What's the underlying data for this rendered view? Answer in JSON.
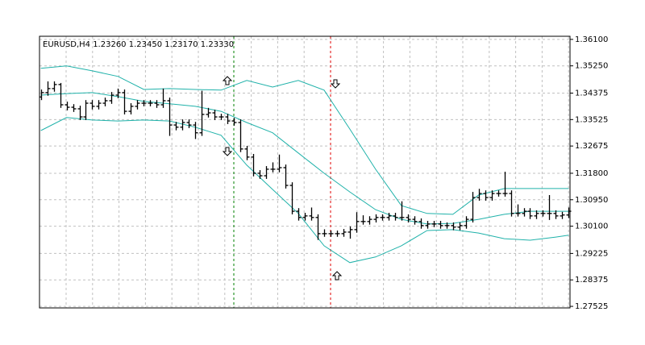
{
  "chart_data": {
    "type": "ohlc",
    "title": "EURUSD,H4  1.23260 1.23450 1.23170 1.23330",
    "x": [
      0,
      1,
      2,
      3,
      4,
      5,
      6,
      7,
      8,
      9,
      10,
      11,
      12,
      13,
      14,
      15,
      16,
      17,
      18,
      19,
      20,
      21,
      22,
      23,
      24,
      25,
      26,
      27,
      28,
      29,
      30,
      31,
      32,
      33,
      34,
      35,
      36,
      37,
      38,
      39,
      40,
      41,
      42,
      43,
      44,
      45,
      46,
      47,
      48,
      49,
      50,
      51,
      52,
      53,
      54,
      55,
      56,
      57,
      58,
      59,
      60,
      61,
      62,
      63,
      64,
      65,
      66,
      67,
      68,
      69,
      70,
      71,
      72,
      73,
      74,
      75,
      76,
      77,
      78,
      79,
      80,
      81,
      82
    ],
    "xlim": [
      -0.2,
      82.2
    ],
    "open": [
      1.3425,
      1.3439,
      1.3452,
      1.3465,
      1.34,
      1.3392,
      1.3387,
      1.3361,
      1.3405,
      1.3395,
      1.3405,
      1.3413,
      1.3431,
      1.3439,
      1.3379,
      1.3395,
      1.3405,
      1.3405,
      1.3405,
      1.34,
      1.3413,
      1.3335,
      1.3328,
      1.3343,
      1.3335,
      1.331,
      1.3369,
      1.3374,
      1.3361,
      1.3361,
      1.3348,
      1.3343,
      1.3258,
      1.3232,
      1.318,
      1.3172,
      1.3193,
      1.3193,
      1.3198,
      1.3141,
      1.3058,
      1.3038,
      1.3043,
      1.3038,
      1.2986,
      1.2986,
      1.2986,
      1.2986,
      1.2991,
      1.2999,
      1.3025,
      1.3025,
      1.3032,
      1.3038,
      1.3038,
      1.3043,
      1.3038,
      1.3038,
      1.3032,
      1.3025,
      1.3012,
      1.3017,
      1.3017,
      1.3012,
      1.3012,
      1.3007,
      1.3012,
      1.3032,
      1.3102,
      1.3115,
      1.3102,
      1.3115,
      1.3115,
      1.3115,
      1.3051,
      1.3051,
      1.3058,
      1.3043,
      1.3051,
      1.3051,
      1.3051,
      1.3043,
      1.3046
    ],
    "high": [
      1.3449,
      1.3475,
      1.3475,
      1.347,
      1.341,
      1.3402,
      1.3397,
      1.3415,
      1.3415,
      1.3415,
      1.3423,
      1.3441,
      1.3452,
      1.3449,
      1.3405,
      1.3415,
      1.3415,
      1.3415,
      1.3415,
      1.3452,
      1.3423,
      1.3345,
      1.3353,
      1.3353,
      1.3345,
      1.3445,
      1.339,
      1.3384,
      1.3371,
      1.3371,
      1.3358,
      1.3353,
      1.3268,
      1.3242,
      1.319,
      1.3203,
      1.3215,
      1.324,
      1.3208,
      1.3151,
      1.3068,
      1.3053,
      1.307,
      1.3048,
      1.3,
      1.2996,
      1.2996,
      1.3001,
      1.3009,
      1.3055,
      1.3045,
      1.3042,
      1.3048,
      1.3048,
      1.3053,
      1.3053,
      1.309,
      1.3048,
      1.3042,
      1.3035,
      1.3027,
      1.3027,
      1.3027,
      1.3022,
      1.3022,
      1.3022,
      1.3042,
      1.312,
      1.313,
      1.3125,
      1.3125,
      1.3125,
      1.3185,
      1.3125,
      1.308,
      1.3068,
      1.3068,
      1.3061,
      1.3061,
      1.311,
      1.3061,
      1.3056,
      1.307
    ],
    "low": [
      1.3415,
      1.3429,
      1.3442,
      1.339,
      1.3382,
      1.3377,
      1.3351,
      1.3351,
      1.3385,
      1.3385,
      1.3395,
      1.3403,
      1.3421,
      1.3369,
      1.3369,
      1.3385,
      1.3395,
      1.3395,
      1.339,
      1.339,
      1.33,
      1.3318,
      1.3318,
      1.3325,
      1.329,
      1.33,
      1.3359,
      1.3351,
      1.3351,
      1.3338,
      1.3333,
      1.3248,
      1.3222,
      1.317,
      1.3162,
      1.3162,
      1.3183,
      1.3183,
      1.3131,
      1.3048,
      1.3028,
      1.3028,
      1.3028,
      1.2966,
      1.2976,
      1.2976,
      1.2976,
      1.2976,
      1.297,
      1.2989,
      1.3015,
      1.3015,
      1.3022,
      1.3028,
      1.3028,
      1.3028,
      1.3028,
      1.3022,
      1.3015,
      1.3002,
      1.3002,
      1.3007,
      1.3002,
      1.3002,
      1.2997,
      1.2997,
      1.3002,
      1.3022,
      1.3092,
      1.3092,
      1.3092,
      1.3105,
      1.3105,
      1.3041,
      1.3041,
      1.3041,
      1.3033,
      1.3033,
      1.3041,
      1.303,
      1.3033,
      1.3033,
      1.3036
    ],
    "close": [
      1.3439,
      1.3452,
      1.3465,
      1.34,
      1.3392,
      1.3387,
      1.3361,
      1.3405,
      1.3395,
      1.3405,
      1.3413,
      1.3431,
      1.3439,
      1.3379,
      1.3395,
      1.3405,
      1.3405,
      1.3405,
      1.34,
      1.3413,
      1.3335,
      1.3328,
      1.3343,
      1.3335,
      1.331,
      1.3369,
      1.3374,
      1.3361,
      1.3361,
      1.3348,
      1.3343,
      1.3258,
      1.3232,
      1.318,
      1.3172,
      1.3193,
      1.3193,
      1.3198,
      1.3141,
      1.3058,
      1.3038,
      1.3043,
      1.3038,
      1.2986,
      1.2986,
      1.2986,
      1.2986,
      1.2991,
      1.2999,
      1.3025,
      1.3025,
      1.3032,
      1.3038,
      1.3038,
      1.3043,
      1.3038,
      1.3038,
      1.3032,
      1.3025,
      1.3012,
      1.3017,
      1.3017,
      1.3012,
      1.3012,
      1.3007,
      1.3012,
      1.3032,
      1.3102,
      1.3115,
      1.3102,
      1.3115,
      1.3115,
      1.3115,
      1.3051,
      1.3051,
      1.3058,
      1.3043,
      1.3051,
      1.3051,
      1.3051,
      1.3043,
      1.3046,
      1.3058
    ],
    "color": "#000000",
    "bands": {
      "x": [
        0,
        4,
        8,
        12,
        16,
        20,
        24,
        28,
        32,
        36,
        40,
        44,
        48,
        52,
        56,
        60,
        64,
        68,
        72,
        76,
        80,
        82
      ],
      "series": [
        {
          "color": "#20b2aa",
          "values": [
            1.3517,
            1.3525,
            1.3509,
            1.3491,
            1.3449,
            1.3452,
            1.3449,
            1.3447,
            1.3478,
            1.3457,
            1.3478,
            1.3447,
            1.3322,
            1.3193,
            1.3076,
            1.3051,
            1.3048,
            1.311,
            1.3131,
            1.3131,
            1.3131,
            1.3131
          ]
        },
        {
          "color": "#20b2aa",
          "values": [
            1.3431,
            1.3436,
            1.3439,
            1.3426,
            1.3411,
            1.3403,
            1.3395,
            1.3379,
            1.3343,
            1.331,
            1.3245,
            1.318,
            1.312,
            1.3063,
            1.3032,
            1.3017,
            1.3019,
            1.3032,
            1.3048,
            1.3058,
            1.3058,
            1.3058
          ]
        },
        {
          "color": "#20b2aa",
          "values": [
            1.3317,
            1.3359,
            1.3351,
            1.3348,
            1.3351,
            1.3348,
            1.3328,
            1.3302,
            1.3206,
            1.3128,
            1.3051,
            1.2947,
            1.2893,
            1.2911,
            1.2947,
            1.2996,
            1.2999,
            1.2988,
            1.297,
            1.2965,
            1.2975,
            1.2981
          ]
        }
      ]
    },
    "ylim": [
      1.27475,
      1.362
    ],
    "yticks": [
      {
        "value": 1.361,
        "label": "1.36100"
      },
      {
        "value": 1.3525,
        "label": "1.35250"
      },
      {
        "value": 1.34375,
        "label": "1.34375"
      },
      {
        "value": 1.33525,
        "label": "1.33525"
      },
      {
        "value": 1.32675,
        "label": "1.32675"
      },
      {
        "value": 1.318,
        "label": "1.31800"
      },
      {
        "value": 1.3095,
        "label": "1.30950"
      },
      {
        "value": 1.301,
        "label": "1.30100"
      },
      {
        "value": 1.29225,
        "label": "1.29225"
      },
      {
        "value": 1.28375,
        "label": "1.28375"
      },
      {
        "value": 1.27525,
        "label": "1.27525"
      }
    ],
    "grid": true
  }
}
